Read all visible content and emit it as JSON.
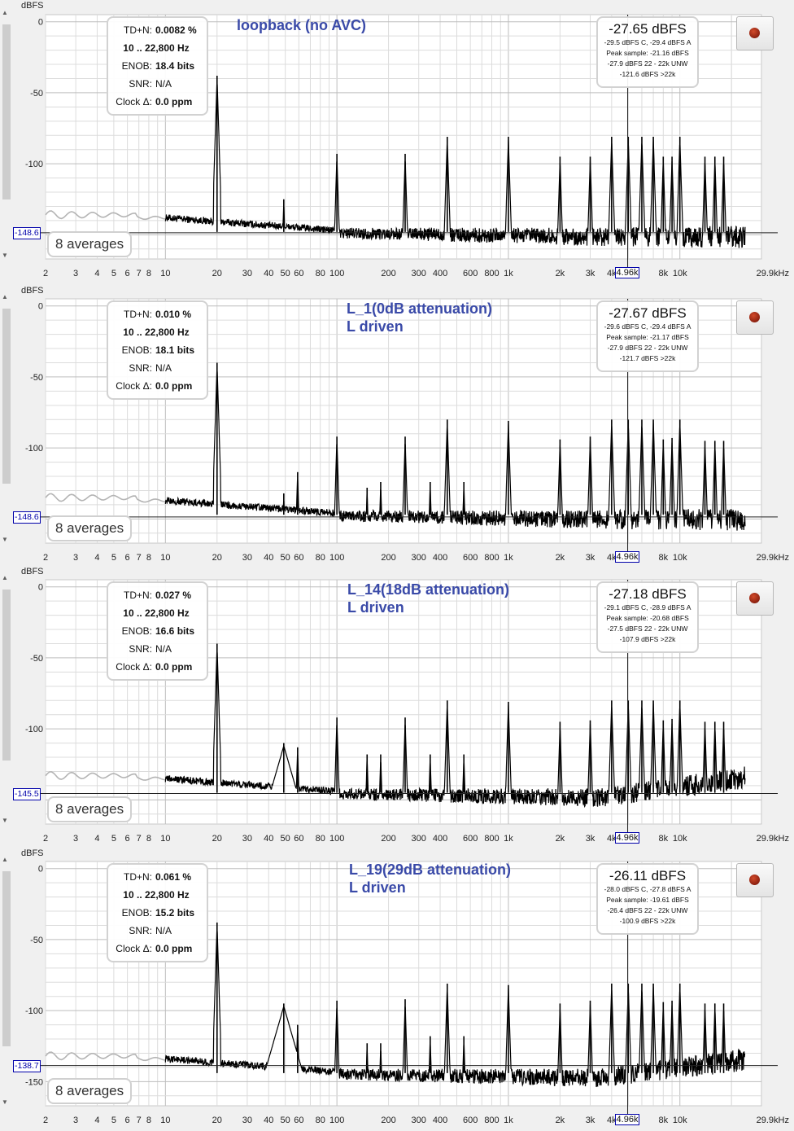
{
  "chart_data": [
    {
      "type": "line",
      "title": "loopback (no AVC)",
      "subtitle": "",
      "ylabel": "dBFS",
      "xunit": "kHz",
      "xscale": "log",
      "xlim": [
        2,
        29900
      ],
      "ylim": [
        -167,
        5
      ],
      "x_ticks": [
        "2",
        "3",
        "4",
        "5",
        "6",
        "7",
        "8",
        "10",
        "20",
        "30",
        "40",
        "50",
        "60",
        "80",
        "100",
        "200",
        "300",
        "400",
        "600",
        "800",
        "1k",
        "2k",
        "3k",
        "4k",
        "4.96k",
        "8k",
        "10k",
        "29.9kHz"
      ],
      "y_ticks": [
        "0",
        "-50",
        "-100"
      ],
      "floor_marker": "-148.6",
      "cursor_freq": "4.96k",
      "noise_floor": -150,
      "harmonics": [
        {
          "x": 20,
          "y": -38
        },
        {
          "x": 49,
          "y": -125
        },
        {
          "x": 100,
          "y": -93
        },
        {
          "x": 250,
          "y": -93
        },
        {
          "x": 440,
          "y": -81
        },
        {
          "x": 1000,
          "y": -81
        },
        {
          "x": 2000,
          "y": -95
        },
        {
          "x": 3000,
          "y": -95
        },
        {
          "x": 4000,
          "y": -81
        },
        {
          "x": 5000,
          "y": -81
        },
        {
          "x": 6000,
          "y": -81
        },
        {
          "x": 7000,
          "y": -81
        },
        {
          "x": 8000,
          "y": -95
        },
        {
          "x": 9000,
          "y": -95
        },
        {
          "x": 10000,
          "y": -81
        },
        {
          "x": 14000,
          "y": -95
        },
        {
          "x": 16000,
          "y": -95
        },
        {
          "x": 18000,
          "y": -95
        }
      ],
      "stats": {
        "tdn_label": "TD+N:",
        "tdn": "0.0082 %",
        "range": "10 .. 22,800 Hz",
        "enob_label": "ENOB:",
        "enob": "18.4 bits",
        "snr_label": "SNR:",
        "snr": "N/A",
        "clock_label": "Clock Δ:",
        "clock": "0.0 ppm"
      },
      "level": {
        "main": "-27.65 dBFS",
        "lines": [
          "-29.5 dBFS C, -29.4 dBFS A",
          "Peak sample: -21.16 dBFS",
          "-27.9 dBFS 22 - 22k UNW",
          "-121.6 dBFS >22k"
        ]
      },
      "averages": "8 averages"
    },
    {
      "type": "line",
      "title": "L_1(0dB attenuation)",
      "subtitle": "L driven",
      "ylabel": "dBFS",
      "xunit": "kHz",
      "xscale": "log",
      "xlim": [
        2,
        29900
      ],
      "ylim": [
        -167,
        5
      ],
      "x_ticks": [
        "2",
        "3",
        "4",
        "5",
        "6",
        "7",
        "8",
        "10",
        "20",
        "30",
        "40",
        "50",
        "60",
        "80",
        "100",
        "200",
        "300",
        "400",
        "600",
        "800",
        "1k",
        "2k",
        "3k",
        "4k",
        "4.96k",
        "8k",
        "10k",
        "29.9kHz"
      ],
      "y_ticks": [
        "0",
        "-50",
        "-100"
      ],
      "floor_marker": "-148.6",
      "cursor_freq": "4.96k",
      "noise_floor": -149,
      "harmonics": [
        {
          "x": 20,
          "y": -40
        },
        {
          "x": 49,
          "y": -132
        },
        {
          "x": 59,
          "y": -117
        },
        {
          "x": 100,
          "y": -92
        },
        {
          "x": 150,
          "y": -128
        },
        {
          "x": 180,
          "y": -124
        },
        {
          "x": 250,
          "y": -92
        },
        {
          "x": 350,
          "y": -124
        },
        {
          "x": 440,
          "y": -80
        },
        {
          "x": 550,
          "y": -124
        },
        {
          "x": 1000,
          "y": -81
        },
        {
          "x": 2000,
          "y": -94
        },
        {
          "x": 3000,
          "y": -92
        },
        {
          "x": 4000,
          "y": -80
        },
        {
          "x": 5000,
          "y": -80
        },
        {
          "x": 6000,
          "y": -80
        },
        {
          "x": 7000,
          "y": -80
        },
        {
          "x": 8000,
          "y": -94
        },
        {
          "x": 9000,
          "y": -93
        },
        {
          "x": 10000,
          "y": -80
        },
        {
          "x": 14000,
          "y": -95
        },
        {
          "x": 16000,
          "y": -95
        },
        {
          "x": 18000,
          "y": -95
        }
      ],
      "stats": {
        "tdn_label": "TD+N:",
        "tdn": "0.010 %",
        "range": "10 .. 22,800 Hz",
        "enob_label": "ENOB:",
        "enob": "18.1 bits",
        "snr_label": "SNR:",
        "snr": "N/A",
        "clock_label": "Clock Δ:",
        "clock": "0.0 ppm"
      },
      "level": {
        "main": "-27.67 dBFS",
        "lines": [
          "-29.6 dBFS C, -29.4 dBFS A",
          "Peak sample: -21.17 dBFS",
          "-27.9 dBFS 22 - 22k UNW",
          "-121.7 dBFS >22k"
        ]
      },
      "averages": "8 averages"
    },
    {
      "type": "line",
      "title": "L_14(18dB attenuation)",
      "subtitle": "L driven",
      "ylabel": "dBFS",
      "xunit": "kHz",
      "xscale": "log",
      "xlim": [
        2,
        29900
      ],
      "ylim": [
        -167,
        5
      ],
      "x_ticks": [
        "2",
        "3",
        "4",
        "5",
        "6",
        "7",
        "8",
        "10",
        "20",
        "30",
        "40",
        "50",
        "60",
        "80",
        "100",
        "200",
        "300",
        "400",
        "600",
        "800",
        "1k",
        "2k",
        "3k",
        "4k",
        "4.96k",
        "8k",
        "10k",
        "29.9kHz"
      ],
      "y_ticks": [
        "0",
        "-50",
        "-100"
      ],
      "floor_marker": "-145.5",
      "cursor_freq": "4.96k",
      "noise_floor": -147,
      "harmonics": [
        {
          "x": 20,
          "y": -40
        },
        {
          "x": 49,
          "y": -110
        },
        {
          "x": 59,
          "y": -113
        },
        {
          "x": 100,
          "y": -92
        },
        {
          "x": 150,
          "y": -118
        },
        {
          "x": 180,
          "y": -118
        },
        {
          "x": 250,
          "y": -92
        },
        {
          "x": 350,
          "y": -118
        },
        {
          "x": 440,
          "y": -80
        },
        {
          "x": 550,
          "y": -118
        },
        {
          "x": 1000,
          "y": -81
        },
        {
          "x": 2000,
          "y": -95
        },
        {
          "x": 3000,
          "y": -94
        },
        {
          "x": 4000,
          "y": -80
        },
        {
          "x": 5000,
          "y": -80
        },
        {
          "x": 6000,
          "y": -80
        },
        {
          "x": 7000,
          "y": -80
        },
        {
          "x": 8000,
          "y": -94
        },
        {
          "x": 9000,
          "y": -93
        },
        {
          "x": 10000,
          "y": -80
        },
        {
          "x": 14000,
          "y": -95
        },
        {
          "x": 16000,
          "y": -95
        },
        {
          "x": 18000,
          "y": -95
        }
      ],
      "stats": {
        "tdn_label": "TD+N:",
        "tdn": "0.027 %",
        "range": "10 .. 22,800 Hz",
        "enob_label": "ENOB:",
        "enob": "16.6 bits",
        "snr_label": "SNR:",
        "snr": "N/A",
        "clock_label": "Clock Δ:",
        "clock": "0.0 ppm"
      },
      "level": {
        "main": "-27.18 dBFS",
        "lines": [
          "-29.1 dBFS C, -28.9 dBFS A",
          "Peak sample: -20.68 dBFS",
          "-27.5 dBFS 22 - 22k UNW",
          "-107.9 dBFS >22k"
        ]
      },
      "averages": "8 averages"
    },
    {
      "type": "line",
      "title": "L_19(29dB attenuation)",
      "subtitle": "L driven",
      "ylabel": "dBFS",
      "xunit": "kHz",
      "xscale": "log",
      "xlim": [
        2,
        29900
      ],
      "ylim": [
        -167,
        5
      ],
      "x_ticks": [
        "2",
        "3",
        "4",
        "5",
        "6",
        "7",
        "8",
        "10",
        "20",
        "30",
        "40",
        "50",
        "60",
        "80",
        "100",
        "200",
        "300",
        "400",
        "600",
        "800",
        "1k",
        "2k",
        "3k",
        "4k",
        "4.96k",
        "8k",
        "10k",
        "29.9kHz"
      ],
      "y_ticks": [
        "0",
        "-50",
        "-100",
        "-150"
      ],
      "floor_marker": "-138.7",
      "cursor_freq": "4.96k",
      "noise_floor": -146,
      "harmonics": [
        {
          "x": 20,
          "y": -38
        },
        {
          "x": 49,
          "y": -95
        },
        {
          "x": 59,
          "y": -110
        },
        {
          "x": 100,
          "y": -93
        },
        {
          "x": 150,
          "y": -123
        },
        {
          "x": 180,
          "y": -123
        },
        {
          "x": 250,
          "y": -92
        },
        {
          "x": 350,
          "y": -118
        },
        {
          "x": 440,
          "y": -81
        },
        {
          "x": 550,
          "y": -118
        },
        {
          "x": 1000,
          "y": -82
        },
        {
          "x": 2000,
          "y": -95
        },
        {
          "x": 3000,
          "y": -93
        },
        {
          "x": 4000,
          "y": -81
        },
        {
          "x": 5000,
          "y": -81
        },
        {
          "x": 6000,
          "y": -81
        },
        {
          "x": 7000,
          "y": -81
        },
        {
          "x": 8000,
          "y": -94
        },
        {
          "x": 9000,
          "y": -93
        },
        {
          "x": 10000,
          "y": -81
        },
        {
          "x": 14000,
          "y": -95
        },
        {
          "x": 16000,
          "y": -95
        },
        {
          "x": 18000,
          "y": -95
        }
      ],
      "stats": {
        "tdn_label": "TD+N:",
        "tdn": "0.061 %",
        "range": "10 .. 22,800 Hz",
        "enob_label": "ENOB:",
        "enob": "15.2 bits",
        "snr_label": "SNR:",
        "snr": "N/A",
        "clock_label": "Clock Δ:",
        "clock": "0.0 ppm"
      },
      "level": {
        "main": "-26.11 dBFS",
        "lines": [
          "-28.0 dBFS C, -27.8 dBFS A",
          "Peak sample: -19.61 dBFS",
          "-26.4 dBFS 22 - 22k UNW",
          "-100.9 dBFS >22k"
        ]
      },
      "averages": "8 averages"
    }
  ],
  "colors": {
    "trace": "#000000",
    "below10hz": "#b4b4b4",
    "grid": "#dcdcdc",
    "grid_major": "#bdbdbd",
    "title": "#3a4aa8",
    "cursor": "#0000aa"
  }
}
